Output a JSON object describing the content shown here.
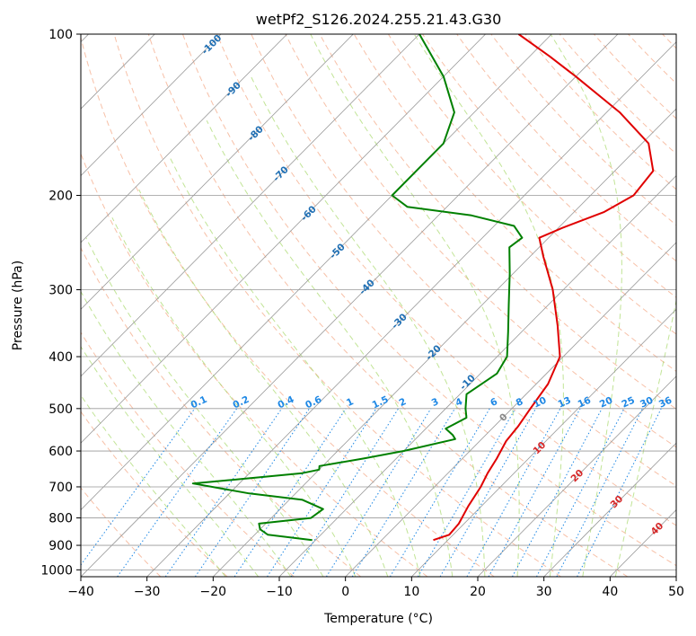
{
  "chart_data": {
    "type": "skew-t",
    "title": "wetPf2_S126.2024.255.21.43.G30",
    "xlabel": "Temperature (°C)",
    "ylabel": "Pressure (hPa)",
    "xlim": [
      -40,
      50
    ],
    "ylim": [
      1030,
      100
    ],
    "y_scale": "log",
    "grid": true,
    "x_ticks": [
      "−40",
      "−30",
      "−20",
      "−10",
      "0",
      "10",
      "20",
      "30",
      "40",
      "50"
    ],
    "y_ticks": [
      "100",
      "200",
      "300",
      "400",
      "500",
      "600",
      "700",
      "800",
      "900",
      "1000"
    ],
    "colors": {
      "temperature": "#e00000",
      "dewpoint": "#008000",
      "isotherm": "#999999",
      "dry_adiabat": "#f4a582",
      "moist_adiabat": "#a6d96a",
      "mixing_ratio": "#1e88e5",
      "isotherm_label": "#1f6fb4"
    },
    "series": [
      {
        "name": "temperature",
        "points": [
          {
            "p": 880,
            "t": 7.8
          },
          {
            "p": 860,
            "t": 9.4
          },
          {
            "p": 820,
            "t": 9.2
          },
          {
            "p": 760,
            "t": 8.0
          },
          {
            "p": 700,
            "t": 7.0
          },
          {
            "p": 660,
            "t": 6.0
          },
          {
            "p": 620,
            "t": 5.2
          },
          {
            "p": 575,
            "t": 4.0
          },
          {
            "p": 540,
            "t": 3.6
          },
          {
            "p": 500,
            "t": 2.8
          },
          {
            "p": 450,
            "t": 1.8
          },
          {
            "p": 400,
            "t": -0.5
          },
          {
            "p": 350,
            "t": -5.5
          },
          {
            "p": 300,
            "t": -11.6
          },
          {
            "p": 260,
            "t": -18.0
          },
          {
            "p": 240,
            "t": -21.4
          },
          {
            "p": 230,
            "t": -19.4
          },
          {
            "p": 215,
            "t": -15.5
          },
          {
            "p": 200,
            "t": -13.5
          },
          {
            "p": 180,
            "t": -14.2
          },
          {
            "p": 160,
            "t": -19.0
          },
          {
            "p": 140,
            "t": -28.0
          },
          {
            "p": 120,
            "t": -40.0
          },
          {
            "p": 110,
            "t": -47.0
          },
          {
            "p": 100,
            "t": -55.0
          }
        ]
      },
      {
        "name": "dewpoint",
        "points": [
          {
            "p": 880,
            "t": -10.5
          },
          {
            "p": 860,
            "t": -18.0
          },
          {
            "p": 840,
            "t": -20.0
          },
          {
            "p": 820,
            "t": -21.0
          },
          {
            "p": 800,
            "t": -14.0
          },
          {
            "p": 770,
            "t": -13.5
          },
          {
            "p": 740,
            "t": -18.0
          },
          {
            "p": 720,
            "t": -27.0
          },
          {
            "p": 690,
            "t": -37.0
          },
          {
            "p": 680,
            "t": -32.0
          },
          {
            "p": 660,
            "t": -22.0
          },
          {
            "p": 650,
            "t": -20.0
          },
          {
            "p": 640,
            "t": -20.5
          },
          {
            "p": 620,
            "t": -15.0
          },
          {
            "p": 600,
            "t": -10.0
          },
          {
            "p": 570,
            "t": -4.0
          },
          {
            "p": 560,
            "t": -5.0
          },
          {
            "p": 545,
            "t": -7.0
          },
          {
            "p": 520,
            "t": -5.5
          },
          {
            "p": 500,
            "t": -7.0
          },
          {
            "p": 470,
            "t": -9.0
          },
          {
            "p": 430,
            "t": -7.5
          },
          {
            "p": 400,
            "t": -8.5
          },
          {
            "p": 360,
            "t": -12.0
          },
          {
            "p": 320,
            "t": -16.0
          },
          {
            "p": 280,
            "t": -20.5
          },
          {
            "p": 250,
            "t": -24.5
          },
          {
            "p": 240,
            "t": -24.0
          },
          {
            "p": 228,
            "t": -27.0
          },
          {
            "p": 218,
            "t": -35.0
          },
          {
            "p": 210,
            "t": -46.0
          },
          {
            "p": 200,
            "t": -50.0
          },
          {
            "p": 180,
            "t": -50.0
          },
          {
            "p": 160,
            "t": -50.0
          },
          {
            "p": 140,
            "t": -53.0
          },
          {
            "p": 120,
            "t": -60.0
          },
          {
            "p": 100,
            "t": -70.0
          }
        ]
      }
    ],
    "isotherm_labels": [
      "-100",
      "-90",
      "-80",
      "-70",
      "-60",
      "-50",
      "-40",
      "-30",
      "-20",
      "-10",
      "0",
      "10",
      "20",
      "30",
      "40"
    ],
    "mixing_ratio_labels": [
      "0.1",
      "0.2",
      "0.4",
      "0.6",
      "1",
      "1.5",
      "2",
      "3",
      "4",
      "6",
      "8",
      "10",
      "13",
      "16",
      "20",
      "25",
      "30",
      "36"
    ]
  }
}
